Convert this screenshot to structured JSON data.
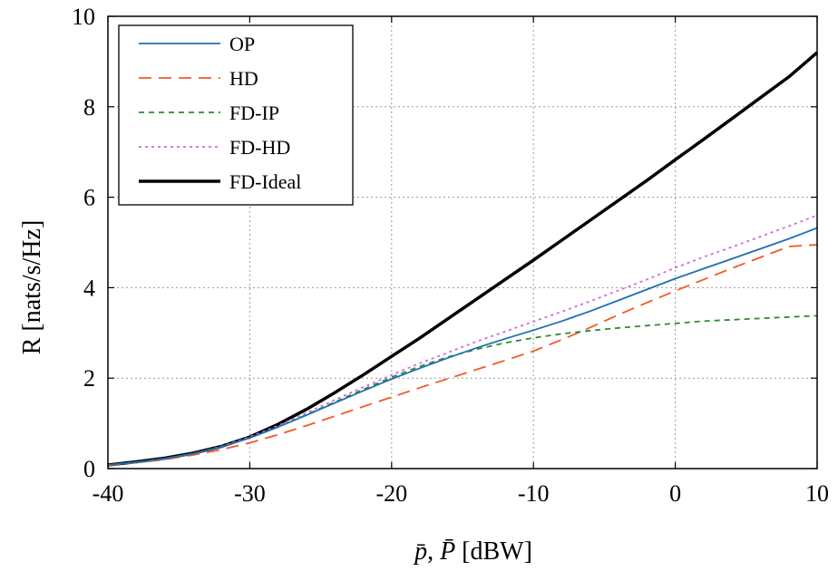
{
  "chart_data": {
    "type": "line",
    "xlabel_parts": [
      "p̄",
      ", ",
      "P̄",
      " [dBW]"
    ],
    "ylabel": "R [nats/s/Hz]",
    "xlim": [
      -40,
      10
    ],
    "ylim": [
      0,
      10
    ],
    "xticks": [
      -40,
      -30,
      -20,
      -10,
      0,
      10
    ],
    "yticks": [
      0,
      2,
      4,
      6,
      8,
      10
    ],
    "grid": true,
    "legend_position": "top-left",
    "series": [
      {
        "name": "OP",
        "color": "#1f6fb2",
        "style": "solid",
        "x": [
          -40,
          -38,
          -36,
          -34,
          -32,
          -30,
          -28,
          -26,
          -24,
          -22,
          -20,
          -18,
          -16,
          -14,
          -12,
          -10,
          -8,
          -6,
          -4,
          -2,
          0,
          2,
          4,
          6,
          8,
          10
        ],
        "y": [
          0.08,
          0.14,
          0.22,
          0.33,
          0.48,
          0.68,
          0.92,
          1.18,
          1.45,
          1.72,
          1.98,
          2.22,
          2.45,
          2.67,
          2.87,
          3.06,
          3.26,
          3.48,
          3.72,
          3.96,
          4.2,
          4.42,
          4.64,
          4.86,
          5.08,
          5.32
        ]
      },
      {
        "name": "HD",
        "color": "#f05a28",
        "style": "dashed",
        "x": [
          -40,
          -38,
          -36,
          -34,
          -32,
          -30,
          -28,
          -26,
          -24,
          -22,
          -20,
          -18,
          -16,
          -14,
          -12,
          -10,
          -8,
          -6,
          -4,
          -2,
          0,
          2,
          4,
          6,
          8,
          10
        ],
        "y": [
          0.07,
          0.13,
          0.2,
          0.3,
          0.42,
          0.57,
          0.75,
          0.95,
          1.16,
          1.37,
          1.58,
          1.79,
          1.99,
          2.19,
          2.39,
          2.6,
          2.85,
          3.12,
          3.4,
          3.67,
          3.93,
          4.18,
          4.43,
          4.67,
          4.91,
          4.95
        ]
      },
      {
        "name": "FD-IP",
        "color": "#2e8b2e",
        "style": "dashed-short",
        "x": [
          -40,
          -38,
          -36,
          -34,
          -32,
          -30,
          -28,
          -26,
          -24,
          -22,
          -20,
          -18,
          -16,
          -14,
          -12,
          -10,
          -8,
          -6,
          -4,
          -2,
          0,
          2,
          4,
          6,
          8,
          10
        ],
        "y": [
          0.08,
          0.14,
          0.22,
          0.33,
          0.48,
          0.68,
          0.92,
          1.19,
          1.47,
          1.75,
          2.02,
          2.26,
          2.47,
          2.64,
          2.78,
          2.89,
          2.98,
          3.05,
          3.11,
          3.16,
          3.21,
          3.26,
          3.29,
          3.32,
          3.35,
          3.38
        ]
      },
      {
        "name": "FD-HD",
        "color": "#d36ad6",
        "style": "dotted",
        "x": [
          -40,
          -38,
          -36,
          -34,
          -32,
          -30,
          -28,
          -26,
          -24,
          -22,
          -20,
          -18,
          -16,
          -14,
          -12,
          -10,
          -8,
          -6,
          -4,
          -2,
          0,
          2,
          4,
          6,
          8,
          10
        ],
        "y": [
          0.08,
          0.14,
          0.22,
          0.33,
          0.49,
          0.7,
          0.95,
          1.23,
          1.52,
          1.8,
          2.07,
          2.33,
          2.57,
          2.81,
          3.03,
          3.25,
          3.47,
          3.7,
          3.94,
          4.18,
          4.44,
          4.68,
          4.9,
          5.13,
          5.36,
          5.6
        ]
      },
      {
        "name": "FD-Ideal",
        "color": "#000000",
        "style": "solid-thick",
        "x": [
          -40,
          -38,
          -36,
          -34,
          -32,
          -30,
          -28,
          -26,
          -24,
          -22,
          -20,
          -18,
          -16,
          -14,
          -12,
          -10,
          -8,
          -6,
          -4,
          -2,
          0,
          2,
          4,
          6,
          8,
          10
        ],
        "y": [
          0.08,
          0.15,
          0.23,
          0.34,
          0.49,
          0.7,
          0.98,
          1.31,
          1.68,
          2.07,
          2.48,
          2.89,
          3.32,
          3.75,
          4.18,
          4.61,
          5.05,
          5.49,
          5.93,
          6.37,
          6.83,
          7.28,
          7.74,
          8.2,
          8.66,
          9.2
        ]
      }
    ]
  }
}
